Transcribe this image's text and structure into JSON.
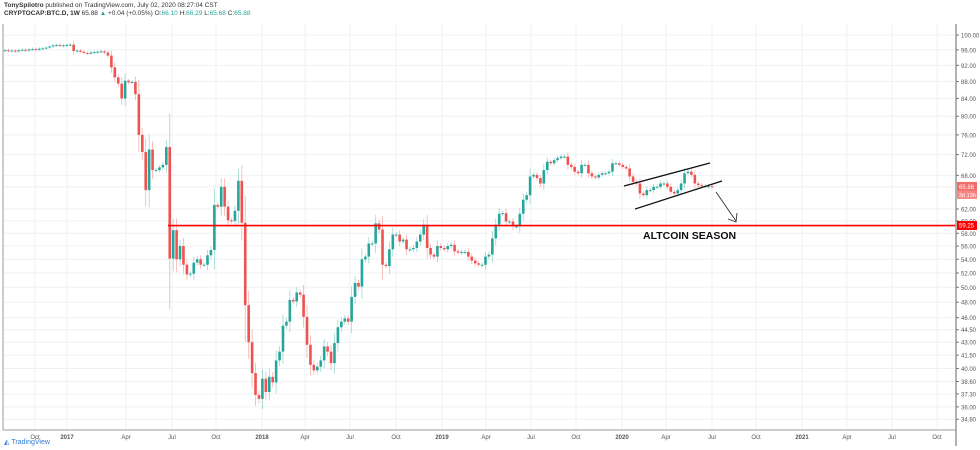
{
  "header": {
    "author": "TonySpilotro",
    "published": "published on TradingView.com, July 02, 2020 08:27:04 CST",
    "symbol": "CRYPTOCAP:BTC.D, 1W",
    "last": "65.88",
    "change": "+0.04 (+0.05%)",
    "open_label": "O:",
    "open": "66.10",
    "high_label": "H:",
    "high": "66.29",
    "low_label": "L:",
    "low": "65.68",
    "close_label": "C:",
    "close": "65.88"
  },
  "footer": {
    "logo_text": "TradingView"
  },
  "colors": {
    "up": "#26a69a",
    "down": "#ef5350",
    "level_line": "#ff0000",
    "grid": "#eef2f6"
  },
  "chart_data": {
    "type": "candlestick",
    "y_scale": "log",
    "ylim": [
      34.8,
      102
    ],
    "grid": true,
    "x_tick_labels": [
      "Oct",
      "2017",
      "Apr",
      "Jul",
      "Oct",
      "2018",
      "Apr",
      "Jul",
      "Oct",
      "2019",
      "Apr",
      "Jul",
      "Oct",
      "2020",
      "Apr",
      "Jul",
      "Oct",
      "2021",
      "Apr",
      "Jul",
      "Oct"
    ],
    "y_tick_labels": [
      "100.00",
      "96.00",
      "92.00",
      "88.00",
      "84.00",
      "80.00",
      "76.00",
      "72.00",
      "68.00",
      "62.00",
      "60.00",
      "58.00",
      "56.00",
      "54.00",
      "52.00",
      "50.00",
      "48.00",
      "46.00",
      "44.50",
      "43.00",
      "41.50",
      "40.00",
      "38.60",
      "37.30",
      "36.00",
      "34.80"
    ],
    "weekly_closes": [
      95.9,
      95.7,
      95.8,
      95.6,
      95.9,
      96.0,
      95.8,
      96.1,
      96.2,
      96.0,
      96.3,
      96.4,
      96.6,
      96.9,
      97.2,
      97.3,
      97.1,
      97.2,
      97.3,
      97.4,
      95.7,
      95.8,
      95.5,
      95.2,
      95.0,
      95.3,
      95.4,
      95.5,
      95.6,
      95.3,
      94.5,
      91.5,
      89.0,
      87.5,
      84.0,
      88.2,
      87.8,
      87.9,
      85.0,
      76.0,
      72.5,
      65.3,
      73.0,
      69.0,
      69.0,
      69.5,
      70.0,
      73.5,
      54.1,
      58.5,
      54.0,
      56.0,
      53.2,
      51.8,
      51.9,
      53.5,
      54.0,
      53.2,
      53.2,
      54.6,
      55.4,
      62.7,
      62.4,
      65.9,
      62.4,
      60.1,
      60.0,
      61.7,
      67.0,
      59.7,
      47.6,
      43.0,
      39.5,
      37.2,
      36.8,
      38.9,
      37.5,
      39.1,
      38.5,
      40.9,
      41.9,
      45.0,
      45.5,
      48.3,
      48.1,
      49.3,
      49.0,
      46.1,
      42.7,
      40.4,
      39.8,
      40.2,
      40.9,
      42.5,
      41.9,
      40.6,
      42.9,
      44.8,
      45.5,
      45.9,
      45.5,
      48.7,
      50.6,
      50.1,
      54.0,
      54.4,
      56.4,
      56.4,
      59.6,
      58.6,
      53.2,
      53.0,
      55.5,
      57.8,
      57.8,
      56.7,
      57.0,
      55.5,
      55.5,
      55.7,
      56.7,
      57.8,
      59.4,
      55.7,
      54.7,
      54.4,
      56.0,
      55.7,
      55.5,
      56.0,
      56.2,
      55.2,
      55.0,
      55.1,
      55.1,
      54.4,
      53.8,
      53.4,
      53.2,
      53.2,
      54.4,
      54.7,
      57.2,
      59.4,
      61.2,
      61.3,
      59.9,
      59.9,
      59.1,
      59.1,
      61.2,
      63.6,
      64.4,
      67.8,
      68.1,
      67.5,
      66.5,
      69.0,
      70.6,
      70.3,
      70.9,
      71.3,
      71.6,
      71.6,
      70.0,
      69.6,
      68.7,
      68.4,
      70.0,
      70.0,
      68.4,
      67.8,
      67.6,
      68.1,
      68.4,
      68.4,
      68.7,
      70.3,
      70.3,
      70.0,
      69.6,
      69.3,
      67.8,
      66.8,
      66.5,
      64.7,
      64.4,
      65.3,
      65.3,
      65.9,
      65.9,
      66.5,
      66.5,
      65.9,
      65.0,
      64.7,
      65.3,
      66.5,
      68.4,
      68.7,
      68.1,
      66.5,
      66.2,
      66.0,
      66.0,
      66.0,
      65.88
    ],
    "horizontal_level": 59.25,
    "horizontal_level_label": "59.25",
    "last_price_label": "65.88",
    "countdown_label": "3d 13h",
    "annotation": "ALTCOIN SEASON"
  }
}
